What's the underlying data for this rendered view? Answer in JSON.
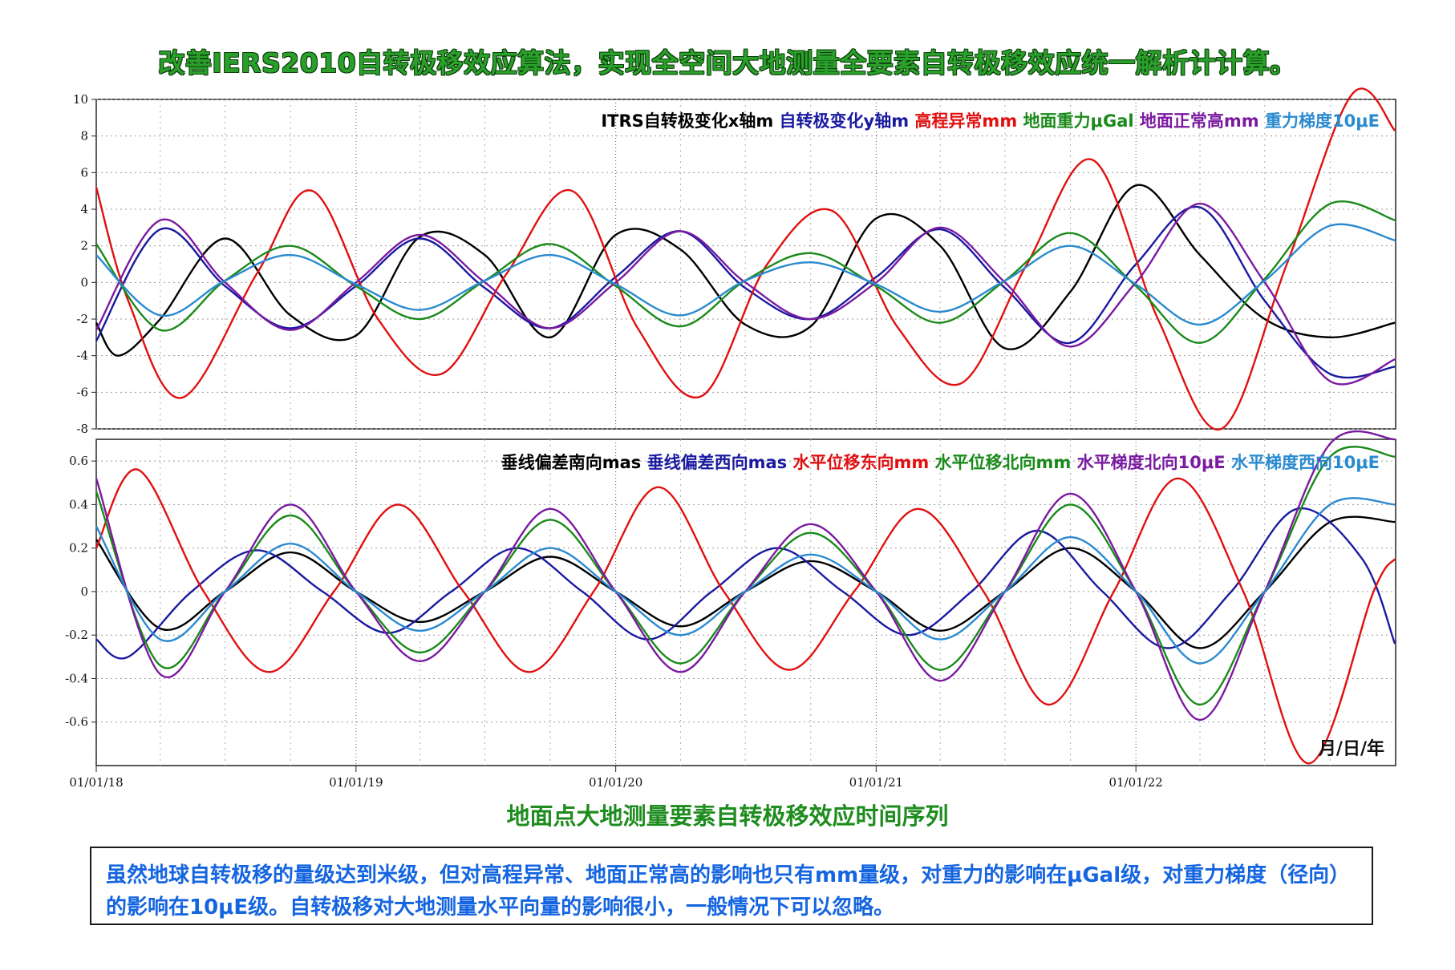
{
  "headline": "改善IERS2010自转极移效应算法，实现全空间大地测量全要素自转极移效应统一解析计计算。",
  "subtitle": "地面点大地测量要素自转极移效应时间序列",
  "note": "虽然地球自转极移的量级达到米级，但对高程异常、地面正常高的影响也只有mm量级，对重力的影响在μGal级，对重力梯度（径向）的影响在10μE级。自转极移对大地测量水平向量的影响很小，一般情况下可以忽略。",
  "date_axis_unit": "月/日/年",
  "chart_data": [
    {
      "type": "line",
      "x_tick_labels": [
        "01/01/18",
        "01/01/19",
        "01/01/20",
        "01/01/21",
        "01/01/22"
      ],
      "x_range": [
        "2018-01-01",
        "2023-01-01"
      ],
      "ylim": [
        -8,
        10
      ],
      "y_ticks": [
        -8,
        -6,
        -4,
        -2,
        0,
        2,
        4,
        6,
        8,
        10
      ],
      "grid": "dotted",
      "legend_position": "top",
      "series": [
        {
          "name": "ITRS自转极变化x轴m",
          "color": "#000000",
          "x": [
            "2018-01-01",
            "2018-02-01",
            "2018-04-01",
            "2018-07-01",
            "2018-10-01",
            "2019-01-01",
            "2019-04-01",
            "2019-07-01",
            "2019-10-01",
            "2020-01-01",
            "2020-04-01",
            "2020-07-01",
            "2020-10-01",
            "2021-01-01",
            "2021-04-01",
            "2021-07-01",
            "2021-10-01",
            "2022-01-01",
            "2022-04-01",
            "2022-07-01",
            "2022-10-01",
            "2022-12-31"
          ],
          "y": [
            -2.2,
            -4.0,
            -2.0,
            2.4,
            -1.8,
            -2.9,
            2.5,
            1.5,
            -3.0,
            2.6,
            1.8,
            -2.3,
            -2.4,
            3.5,
            2.0,
            -3.6,
            -0.5,
            5.3,
            1.5,
            -2.0,
            -3.0,
            -2.2
          ]
        },
        {
          "name": "自转极变化y轴m",
          "color": "#1a1aa0",
          "x": [
            "2018-01-01",
            "2018-04-01",
            "2018-07-01",
            "2018-10-01",
            "2019-01-01",
            "2019-04-01",
            "2019-07-01",
            "2019-10-01",
            "2020-01-01",
            "2020-04-01",
            "2020-07-01",
            "2020-10-01",
            "2021-01-01",
            "2021-04-01",
            "2021-07-01",
            "2021-10-01",
            "2022-01-01",
            "2022-04-01",
            "2022-07-01",
            "2022-10-01",
            "2022-12-31"
          ],
          "y": [
            -3.2,
            2.9,
            -0.2,
            -2.5,
            -0.2,
            2.4,
            -0.3,
            -2.5,
            0.3,
            2.8,
            -0.3,
            -2.0,
            0.3,
            2.9,
            -0.3,
            -3.3,
            1.0,
            4.1,
            -1.0,
            -5.0,
            -4.6
          ]
        },
        {
          "name": "高程异常mm",
          "color": "#e01010",
          "x": [
            "2018-01-01",
            "2018-02-15",
            "2018-05-01",
            "2018-08-15",
            "2018-11-01",
            "2019-02-01",
            "2019-05-01",
            "2019-08-01",
            "2019-11-01",
            "2020-02-01",
            "2020-05-01",
            "2020-08-01",
            "2020-11-01",
            "2021-02-01",
            "2021-05-01",
            "2021-08-01",
            "2021-11-01",
            "2022-02-01",
            "2022-05-01",
            "2022-08-01",
            "2022-11-01",
            "2022-12-31"
          ],
          "y": [
            5.2,
            -1.0,
            -6.3,
            0.5,
            5.0,
            -2.0,
            -5.0,
            0.5,
            5.0,
            -2.5,
            -6.2,
            1.0,
            3.9,
            -2.5,
            -5.5,
            1.0,
            6.7,
            -2.0,
            -8.0,
            1.0,
            10.3,
            8.3
          ]
        },
        {
          "name": "地面重力μGal",
          "color": "#1a8a1a",
          "x": [
            "2018-01-01",
            "2018-04-01",
            "2018-07-01",
            "2018-10-01",
            "2019-01-01",
            "2019-04-01",
            "2019-07-01",
            "2019-10-01",
            "2020-01-01",
            "2020-04-01",
            "2020-07-01",
            "2020-10-01",
            "2021-01-01",
            "2021-04-01",
            "2021-07-01",
            "2021-10-01",
            "2022-01-01",
            "2022-04-01",
            "2022-07-01",
            "2022-10-01",
            "2022-12-31"
          ],
          "y": [
            2.1,
            -2.6,
            0.1,
            2.0,
            -0.2,
            -2.0,
            0.1,
            2.1,
            -0.2,
            -2.4,
            0.1,
            1.6,
            -0.2,
            -2.2,
            0.1,
            2.7,
            -0.2,
            -3.3,
            0.2,
            4.3,
            3.4
          ]
        },
        {
          "name": "地面正常高mm",
          "color": "#7a1aa0",
          "x": [
            "2018-01-01",
            "2018-04-01",
            "2018-07-01",
            "2018-10-01",
            "2019-01-01",
            "2019-04-01",
            "2019-07-01",
            "2019-10-01",
            "2020-01-01",
            "2020-04-01",
            "2020-07-01",
            "2020-10-01",
            "2021-01-01",
            "2021-04-01",
            "2021-07-01",
            "2021-10-01",
            "2022-01-01",
            "2022-04-01",
            "2022-07-01",
            "2022-10-01",
            "2022-12-31"
          ],
          "y": [
            -2.6,
            3.4,
            0.0,
            -2.6,
            0.0,
            2.6,
            0.0,
            -2.5,
            0.0,
            2.8,
            0.0,
            -2.0,
            0.0,
            3.0,
            0.0,
            -3.5,
            0.0,
            4.3,
            0.0,
            -5.4,
            -4.2
          ]
        },
        {
          "name": "重力梯度10μE",
          "color": "#2a8ad0",
          "x": [
            "2018-01-01",
            "2018-04-01",
            "2018-07-01",
            "2018-10-01",
            "2019-01-01",
            "2019-04-01",
            "2019-07-01",
            "2019-10-01",
            "2020-01-01",
            "2020-04-01",
            "2020-07-01",
            "2020-10-01",
            "2021-01-01",
            "2021-04-01",
            "2021-07-01",
            "2021-10-01",
            "2022-01-01",
            "2022-04-01",
            "2022-07-01",
            "2022-10-01",
            "2022-12-31"
          ],
          "y": [
            1.5,
            -1.8,
            0.1,
            1.5,
            -0.1,
            -1.5,
            0.1,
            1.5,
            -0.1,
            -1.8,
            0.1,
            1.1,
            -0.1,
            -1.6,
            0.1,
            2.0,
            -0.1,
            -2.3,
            0.1,
            3.1,
            2.3
          ]
        }
      ]
    },
    {
      "type": "line",
      "x_tick_labels": [
        "01/01/18",
        "01/01/19",
        "01/01/20",
        "01/01/21",
        "01/01/22"
      ],
      "x_range": [
        "2018-01-01",
        "2023-01-01"
      ],
      "ylim": [
        -0.8,
        0.7
      ],
      "y_ticks": [
        -0.6,
        -0.4,
        -0.2,
        0,
        0.2,
        0.4,
        0.6
      ],
      "grid": "dotted",
      "legend_position": "top",
      "series": [
        {
          "name": "垂线偏差南向mas",
          "color": "#000000",
          "x": [
            "2018-01-01",
            "2018-04-01",
            "2018-07-01",
            "2018-10-01",
            "2019-01-01",
            "2019-04-01",
            "2019-07-01",
            "2019-10-01",
            "2020-01-01",
            "2020-04-01",
            "2020-07-01",
            "2020-10-01",
            "2021-01-01",
            "2021-04-01",
            "2021-07-01",
            "2021-10-01",
            "2022-01-01",
            "2022-04-01",
            "2022-07-01",
            "2022-10-01",
            "2022-12-31"
          ],
          "y": [
            0.24,
            -0.17,
            0.0,
            0.18,
            0.0,
            -0.14,
            0.0,
            0.16,
            0.0,
            -0.16,
            0.0,
            0.14,
            0.0,
            -0.18,
            0.0,
            0.2,
            0.0,
            -0.26,
            0.0,
            0.32,
            0.32
          ]
        },
        {
          "name": "垂线偏差西向mas",
          "color": "#1a1aa0",
          "x": [
            "2018-01-01",
            "2018-02-15",
            "2018-05-15",
            "2018-08-15",
            "2018-11-15",
            "2019-02-15",
            "2019-05-15",
            "2019-08-15",
            "2019-11-15",
            "2020-02-15",
            "2020-05-15",
            "2020-08-15",
            "2020-11-15",
            "2021-02-15",
            "2021-05-15",
            "2021-08-15",
            "2021-11-15",
            "2022-02-15",
            "2022-05-15",
            "2022-08-15",
            "2022-11-15",
            "2022-12-31"
          ],
          "y": [
            -0.22,
            -0.3,
            0.0,
            0.19,
            0.0,
            -0.19,
            0.0,
            0.2,
            0.0,
            -0.22,
            0.0,
            0.2,
            0.0,
            -0.2,
            0.0,
            0.28,
            0.0,
            -0.26,
            0.0,
            0.38,
            0.15,
            -0.24
          ]
        },
        {
          "name": "水平位移东向mm",
          "color": "#e01010",
          "x": [
            "2018-01-01",
            "2018-03-01",
            "2018-06-01",
            "2018-09-01",
            "2018-12-01",
            "2019-03-01",
            "2019-06-01",
            "2019-09-01",
            "2019-12-01",
            "2020-03-01",
            "2020-06-01",
            "2020-09-01",
            "2020-12-01",
            "2021-03-01",
            "2021-06-01",
            "2021-09-01",
            "2021-12-01",
            "2022-03-01",
            "2022-06-01",
            "2022-09-01",
            "2022-12-01",
            "2022-12-31"
          ],
          "y": [
            0.2,
            0.56,
            0.0,
            -0.37,
            0.0,
            0.4,
            0.0,
            -0.37,
            0.0,
            0.48,
            0.0,
            -0.36,
            0.0,
            0.38,
            0.0,
            -0.52,
            0.0,
            0.52,
            0.0,
            -0.79,
            0.0,
            0.15
          ]
        },
        {
          "name": "水平位移北向mm",
          "color": "#1a8a1a",
          "x": [
            "2018-01-01",
            "2018-04-01",
            "2018-07-01",
            "2018-10-01",
            "2019-01-01",
            "2019-04-01",
            "2019-07-01",
            "2019-10-01",
            "2020-01-01",
            "2020-04-01",
            "2020-07-01",
            "2020-10-01",
            "2021-01-01",
            "2021-04-01",
            "2021-07-01",
            "2021-10-01",
            "2022-01-01",
            "2022-04-01",
            "2022-07-01",
            "2022-10-01",
            "2022-12-31"
          ],
          "y": [
            0.46,
            -0.34,
            0.0,
            0.35,
            0.0,
            -0.28,
            0.0,
            0.33,
            0.0,
            -0.33,
            0.0,
            0.27,
            0.0,
            -0.36,
            0.0,
            0.4,
            0.0,
            -0.52,
            0.0,
            0.62,
            0.62
          ]
        },
        {
          "name": "水平梯度北向10μE",
          "color": "#7a1aa0",
          "x": [
            "2018-01-01",
            "2018-04-01",
            "2018-07-01",
            "2018-10-01",
            "2019-01-01",
            "2019-04-01",
            "2019-07-01",
            "2019-10-01",
            "2020-01-01",
            "2020-04-01",
            "2020-07-01",
            "2020-10-01",
            "2021-01-01",
            "2021-04-01",
            "2021-07-01",
            "2021-10-01",
            "2022-01-01",
            "2022-04-01",
            "2022-07-01",
            "2022-10-01",
            "2022-12-31"
          ],
          "y": [
            0.52,
            -0.38,
            0.0,
            0.4,
            0.0,
            -0.32,
            0.0,
            0.38,
            0.0,
            -0.37,
            0.0,
            0.31,
            0.0,
            -0.41,
            0.0,
            0.45,
            0.0,
            -0.59,
            0.0,
            0.68,
            0.7
          ]
        },
        {
          "name": "水平梯度西向10μE",
          "color": "#2a8ad0",
          "x": [
            "2018-01-01",
            "2018-04-01",
            "2018-07-01",
            "2018-10-01",
            "2019-01-01",
            "2019-04-01",
            "2019-07-01",
            "2019-10-01",
            "2020-01-01",
            "2020-04-01",
            "2020-07-01",
            "2020-10-01",
            "2021-01-01",
            "2021-04-01",
            "2021-07-01",
            "2021-10-01",
            "2022-01-01",
            "2022-04-01",
            "2022-07-01",
            "2022-10-01",
            "2022-12-31"
          ],
          "y": [
            0.3,
            -0.22,
            0.0,
            0.22,
            0.0,
            -0.18,
            0.0,
            0.2,
            0.0,
            -0.2,
            0.0,
            0.17,
            0.0,
            -0.22,
            0.0,
            0.25,
            0.0,
            -0.33,
            0.0,
            0.4,
            0.4
          ]
        }
      ]
    }
  ]
}
